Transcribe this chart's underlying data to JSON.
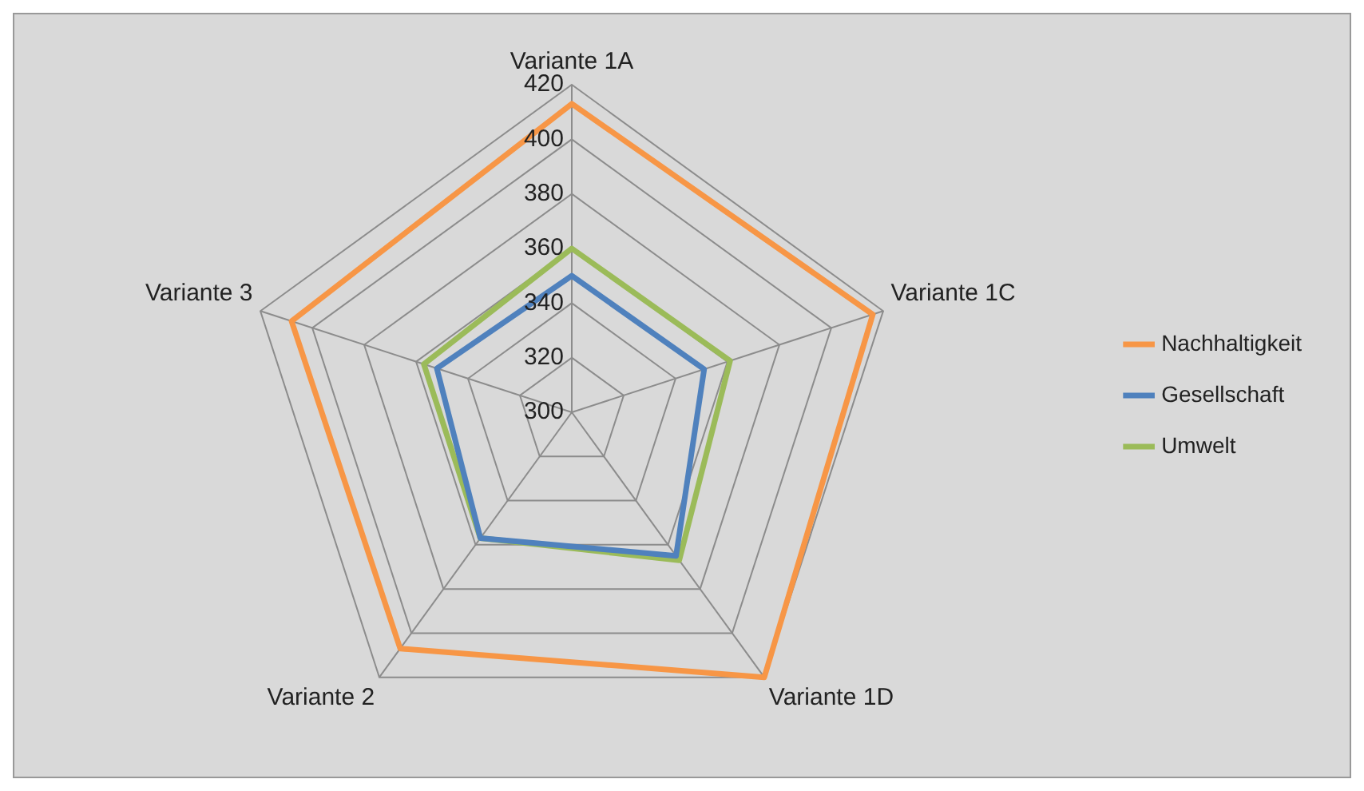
{
  "chart_data": {
    "type": "radar",
    "categories": [
      "Variante 1A",
      "Variante 1C",
      "Variante 1D",
      "Variante 2",
      "Variante 3"
    ],
    "series": [
      {
        "name": "Nachhaltigkeit",
        "color": "#f79646",
        "values": [
          413,
          416,
          420,
          407,
          408
        ]
      },
      {
        "name": "Gesellschaft",
        "color": "#4f81bd",
        "values": [
          350,
          351,
          365,
          357,
          352
        ]
      },
      {
        "name": "Umwelt",
        "color": "#9bbb59",
        "values": [
          360,
          361,
          367,
          357,
          357
        ]
      }
    ],
    "ylim": [
      300,
      420
    ],
    "yticks": [
      300,
      320,
      340,
      360,
      380,
      400,
      420
    ],
    "grid": true,
    "legend": "right",
    "marker": "none"
  }
}
